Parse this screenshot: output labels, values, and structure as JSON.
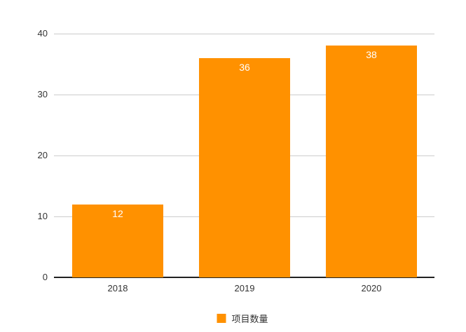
{
  "chart_data": {
    "type": "bar",
    "title": "",
    "xlabel": "",
    "ylabel": "",
    "categories": [
      "2018",
      "2019",
      "2020"
    ],
    "values": [
      12,
      36,
      38
    ],
    "value_labels": [
      "12",
      "36",
      "38"
    ],
    "series": [
      {
        "name": "项目数量",
        "values": [
          12,
          36,
          38
        ]
      }
    ],
    "y_ticks": [
      0,
      10,
      20,
      30,
      40
    ],
    "y_tick_labels": [
      "0",
      "10",
      "20",
      "30",
      "40"
    ],
    "ylim": [
      0,
      40
    ],
    "grid": true,
    "legend_position": "bottom-center",
    "legend_label": "项目数量",
    "colors": {
      "bar": "#FF9100",
      "gridline": "#CCCCCC",
      "axis_line": "#212121",
      "tick_text": "#333333",
      "value_label_text": "#FFFFFF",
      "background": "#FFFFFF"
    }
  }
}
